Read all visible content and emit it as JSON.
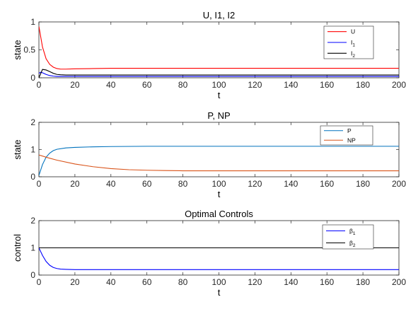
{
  "chart_data": [
    {
      "type": "line",
      "title": "U, I1, I2",
      "xlabel": "t",
      "ylabel": "state",
      "xlim": [
        0,
        200
      ],
      "ylim": [
        0,
        1
      ],
      "xticks": [
        0,
        20,
        40,
        60,
        80,
        100,
        120,
        140,
        160,
        180,
        200
      ],
      "yticks": [
        0,
        0.5,
        1
      ],
      "ytick_labels": [
        "0",
        "0.5",
        "1"
      ],
      "legend_position": "top-right",
      "series": [
        {
          "name": "U",
          "label_main": "U",
          "label_sub": "",
          "color": "#ff0000",
          "x": [
            0,
            2,
            4,
            6,
            8,
            10,
            12,
            15,
            20,
            30,
            40,
            60,
            100,
            150,
            200
          ],
          "y": [
            0.92,
            0.55,
            0.34,
            0.24,
            0.19,
            0.165,
            0.155,
            0.155,
            0.16,
            0.165,
            0.17,
            0.17,
            0.17,
            0.17,
            0.17
          ]
        },
        {
          "name": "I1",
          "label_main": "I",
          "label_sub": "1",
          "color": "#0000ff",
          "x": [
            0,
            1,
            2,
            4,
            6,
            8,
            10,
            15,
            200
          ],
          "y": [
            0.08,
            0.1,
            0.09,
            0.06,
            0.04,
            0.03,
            0.025,
            0.025,
            0.025
          ]
        },
        {
          "name": "I2",
          "label_main": "I",
          "label_sub": "2",
          "color": "#000000",
          "x": [
            0,
            2,
            4,
            6,
            8,
            10,
            12,
            15,
            20,
            200
          ],
          "y": [
            0.0,
            0.15,
            0.14,
            0.11,
            0.08,
            0.06,
            0.055,
            0.05,
            0.05,
            0.05
          ]
        }
      ]
    },
    {
      "type": "line",
      "title": "P, NP",
      "xlabel": "t",
      "ylabel": "state",
      "xlim": [
        0,
        200
      ],
      "ylim": [
        0,
        2
      ],
      "xticks": [
        0,
        20,
        40,
        60,
        80,
        100,
        120,
        140,
        160,
        180,
        200
      ],
      "yticks": [
        0,
        1,
        2
      ],
      "ytick_labels": [
        "0",
        "1",
        "2"
      ],
      "legend_position": "top-right",
      "series": [
        {
          "name": "P",
          "label_main": "P",
          "label_sub": "",
          "color": "#0072bd",
          "x": [
            0,
            2,
            4,
            6,
            8,
            10,
            15,
            20,
            30,
            40,
            60,
            100,
            150,
            200
          ],
          "y": [
            0.05,
            0.45,
            0.72,
            0.87,
            0.96,
            1.01,
            1.06,
            1.08,
            1.1,
            1.11,
            1.12,
            1.12,
            1.12,
            1.12
          ]
        },
        {
          "name": "NP",
          "label_main": "NP",
          "label_sub": "",
          "color": "#d95319",
          "x": [
            0,
            5,
            10,
            20,
            30,
            40,
            50,
            60,
            70,
            80,
            100,
            150,
            200
          ],
          "y": [
            0.8,
            0.7,
            0.61,
            0.47,
            0.37,
            0.3,
            0.26,
            0.24,
            0.23,
            0.22,
            0.22,
            0.22,
            0.22
          ]
        }
      ]
    },
    {
      "type": "line",
      "title": "Optimal Controls",
      "xlabel": "t",
      "ylabel": "control",
      "xlim": [
        0,
        200
      ],
      "ylim": [
        0,
        2
      ],
      "xticks": [
        0,
        20,
        40,
        60,
        80,
        100,
        120,
        140,
        160,
        180,
        200
      ],
      "yticks": [
        0,
        1,
        2
      ],
      "ytick_labels": [
        "0",
        "1",
        "2"
      ],
      "legend_position": "top-right",
      "series": [
        {
          "name": "β1",
          "label_main": "β",
          "label_sub": "1",
          "color": "#0000ff",
          "x": [
            0,
            2,
            4,
            6,
            8,
            10,
            12,
            15,
            20,
            200
          ],
          "y": [
            1.0,
            0.72,
            0.5,
            0.36,
            0.28,
            0.24,
            0.22,
            0.21,
            0.2,
            0.2
          ]
        },
        {
          "name": "β2",
          "label_main": "β",
          "label_sub": "2",
          "color": "#000000",
          "x": [
            0,
            200
          ],
          "y": [
            1.0,
            1.0
          ]
        }
      ]
    }
  ]
}
